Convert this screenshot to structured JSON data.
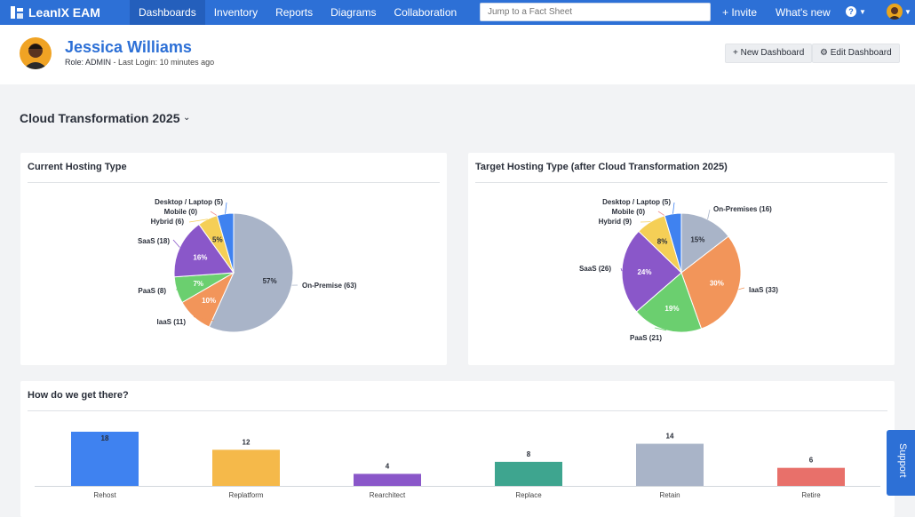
{
  "nav": {
    "brand": "LeanIX EAM",
    "items": [
      "Dashboards",
      "Inventory",
      "Reports",
      "Diagrams",
      "Collaboration"
    ],
    "search_placeholder": "Jump to a Fact Sheet",
    "invite": "+ Invite",
    "whats_new": "What's new",
    "help": "?"
  },
  "user": {
    "name": "Jessica Williams",
    "role_label": "Role:",
    "role": "ADMIN",
    "last_login": "- Last Login: 10 minutes ago"
  },
  "buttons": {
    "new_dashboard": "+ New Dashboard",
    "edit_dashboard": "⚙ Edit Dashboard"
  },
  "dashboard": {
    "title": "Cloud Transformation 2025"
  },
  "colors": {
    "brand": "#2d70d6",
    "on_premise": "#a9b4c8",
    "iaas": "#f2955a",
    "paas": "#6bcf6f",
    "saas": "#8a57c9",
    "hybrid": "#f5cf56",
    "mobile": "#f08a8a",
    "desktop": "#3f82f0"
  },
  "support": "Support",
  "chart_data": [
    {
      "type": "pie",
      "title": "Current Hosting Type",
      "slices": [
        {
          "name": "On-Premise",
          "value": 63,
          "pct": "57%",
          "color": "#a9b4c8"
        },
        {
          "name": "IaaS",
          "value": 11,
          "pct": "10%",
          "color": "#f2955a"
        },
        {
          "name": "PaaS",
          "value": 8,
          "pct": "7%",
          "color": "#6bcf6f"
        },
        {
          "name": "SaaS",
          "value": 18,
          "pct": "16%",
          "color": "#8a57c9"
        },
        {
          "name": "Hybrid",
          "value": 6,
          "pct": "5%",
          "color": "#f5cf56"
        },
        {
          "name": "Mobile",
          "value": 0,
          "pct": "",
          "color": "#f08a8a"
        },
        {
          "name": "Desktop / Laptop",
          "value": 5,
          "pct": "",
          "color": "#3f82f0"
        }
      ],
      "labels": [
        "On-Premise (63)",
        "IaaS (11)",
        "PaaS (8)",
        "SaaS (18)",
        "Hybrid (6)",
        "Mobile (0)",
        "Desktop / Laptop (5)"
      ]
    },
    {
      "type": "pie",
      "title": "Target Hosting Type (after Cloud Transformation 2025)",
      "slices": [
        {
          "name": "On-Premises",
          "value": 16,
          "pct": "15%",
          "color": "#a9b4c8"
        },
        {
          "name": "IaaS",
          "value": 33,
          "pct": "30%",
          "color": "#f2955a"
        },
        {
          "name": "PaaS",
          "value": 21,
          "pct": "19%",
          "color": "#6bcf6f"
        },
        {
          "name": "SaaS",
          "value": 26,
          "pct": "24%",
          "color": "#8a57c9"
        },
        {
          "name": "Hybrid",
          "value": 9,
          "pct": "8%",
          "color": "#f5cf56"
        },
        {
          "name": "Mobile",
          "value": 0,
          "pct": "",
          "color": "#f08a8a"
        },
        {
          "name": "Desktop / Laptop",
          "value": 5,
          "pct": "",
          "color": "#3f82f0"
        }
      ],
      "labels": [
        "On-Premises (16)",
        "IaaS (33)",
        "PaaS (21)",
        "SaaS (26)",
        "Hybrid (9)",
        "Mobile (0)",
        "Desktop / Laptop (5)"
      ]
    },
    {
      "type": "bar",
      "title": "How do we get there?",
      "categories": [
        "Rehost",
        "Replatform",
        "Rearchitect",
        "Replace",
        "Retain",
        "Retire"
      ],
      "values": [
        18,
        12,
        4,
        8,
        14,
        6
      ],
      "colors": [
        "#3f82f0",
        "#f5b94a",
        "#8a57c9",
        "#3ea58f",
        "#a9b4c8",
        "#e8706a"
      ]
    }
  ]
}
